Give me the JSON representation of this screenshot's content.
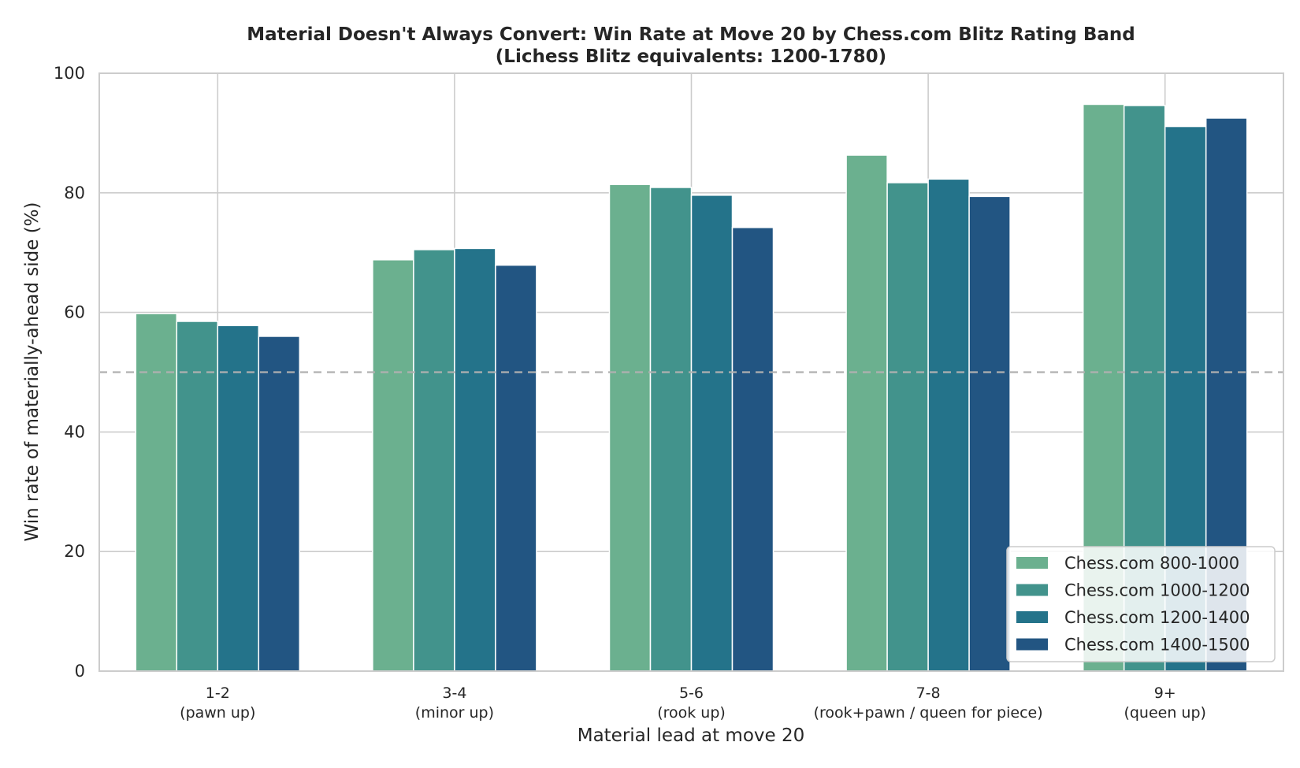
{
  "chart_data": {
    "type": "bar",
    "title": "Material Doesn't Always Convert: Win Rate at Move 20 by Chess.com Blitz Rating Band",
    "subtitle": "(Lichess Blitz equivalents: 1200-1780)",
    "xlabel": "Material lead at move 20",
    "ylabel": "Win rate of materially-ahead side (%)",
    "ylim": [
      0,
      100
    ],
    "yticks": [
      "0",
      "20",
      "40",
      "60",
      "80",
      "100"
    ],
    "grid": true,
    "reference_line": 50,
    "legend_position": "lower-right",
    "categories": [
      {
        "main": "1-2",
        "sub": "(pawn up)"
      },
      {
        "main": "3-4",
        "sub": "(minor up)"
      },
      {
        "main": "5-6",
        "sub": "(rook up)"
      },
      {
        "main": "7-8",
        "sub": "(rook+pawn / queen for piece)"
      },
      {
        "main": "9+",
        "sub": "(queen up)"
      }
    ],
    "series": [
      {
        "name": "Chess.com 800-1000",
        "color": "#6bb08f",
        "values": [
          59.8,
          68.8,
          81.4,
          86.3,
          94.8
        ]
      },
      {
        "name": "Chess.com 1000-1200",
        "color": "#42938c",
        "values": [
          58.5,
          70.5,
          80.9,
          81.7,
          94.6
        ]
      },
      {
        "name": "Chess.com 1200-1400",
        "color": "#24738a",
        "values": [
          57.8,
          70.7,
          79.6,
          82.3,
          91.1
        ]
      },
      {
        "name": "Chess.com 1400-1500",
        "color": "#225582",
        "values": [
          56.0,
          67.9,
          74.2,
          79.4,
          92.5
        ]
      }
    ]
  }
}
